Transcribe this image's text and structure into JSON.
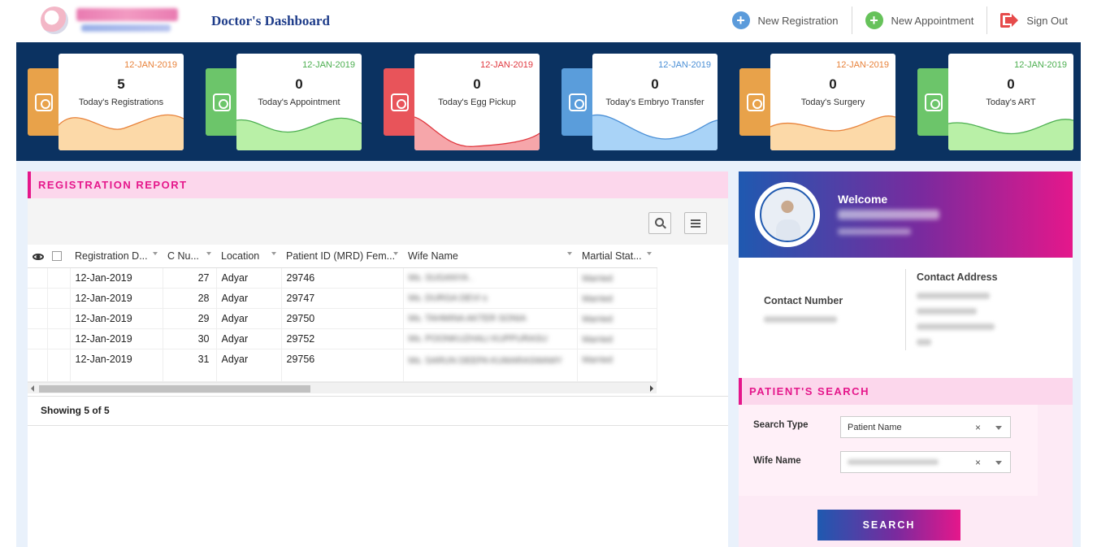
{
  "header": {
    "title": "Doctor's Dashboard",
    "nav": [
      {
        "label": "New Registration",
        "icon": "plus-circle-icon"
      },
      {
        "label": "New Appointment",
        "icon": "plus-circle-icon"
      },
      {
        "label": "Sign Out",
        "icon": "sign-out-icon"
      }
    ]
  },
  "stats": [
    {
      "date": "12-JAN-2019",
      "value": "5",
      "label": "Today's Registrations",
      "color": "#e8a24a",
      "date_color": "#e8823a",
      "wave": "#fcd9a8",
      "icon": "doctor-icon"
    },
    {
      "date": "12-JAN-2019",
      "value": "0",
      "label": "Today's Appointment",
      "color": "#6cc56a",
      "date_color": "#4caf50",
      "wave": "#b9f0a7",
      "icon": "appointment-icon"
    },
    {
      "date": "12-JAN-2019",
      "value": "0",
      "label": "Today's Egg Pickup",
      "color": "#e8545a",
      "date_color": "#e0383f",
      "wave": "#f6a6aa",
      "icon": "egg-pickup-icon"
    },
    {
      "date": "12-JAN-2019",
      "value": "0",
      "label": "Today's Embryo Transfer",
      "color": "#5a9ddb",
      "date_color": "#4a8fd6",
      "wave": "#a9d3f7",
      "icon": "embryo-transfer-icon"
    },
    {
      "date": "12-JAN-2019",
      "value": "0",
      "label": "Today's Surgery",
      "color": "#e8a24a",
      "date_color": "#e8823a",
      "wave": "#fcd9a8",
      "icon": "surgery-icon"
    },
    {
      "date": "12-JAN-2019",
      "value": "0",
      "label": "Today's ART",
      "color": "#6cc56a",
      "date_color": "#4caf50",
      "wave": "#b9f0a7",
      "icon": "art-icon"
    }
  ],
  "registration_report": {
    "title": "REGISTRATION REPORT",
    "columns": [
      "Registration D...",
      "C Nu...",
      "Location",
      "Patient ID (MRD) Fem...",
      "Wife Name",
      "Martial Stat..."
    ],
    "rows": [
      {
        "date": "12-Jan-2019",
        "cnum": "27",
        "location": "Adyar",
        "pid": "29746",
        "wife": "Ms. SUGANYA .",
        "marital": "Married"
      },
      {
        "date": "12-Jan-2019",
        "cnum": "28",
        "location": "Adyar",
        "pid": "29747",
        "wife": "Ms. DURGA DEVI s",
        "marital": "Married"
      },
      {
        "date": "12-Jan-2019",
        "cnum": "29",
        "location": "Adyar",
        "pid": "29750",
        "wife": "Ms. TAHMINA AKTER SONIA",
        "marital": "Married"
      },
      {
        "date": "12-Jan-2019",
        "cnum": "30",
        "location": "Adyar",
        "pid": "29752",
        "wife": "Ms. POONKUZHALI KUPPURASU",
        "marital": "Married"
      },
      {
        "date": "12-Jan-2019",
        "cnum": "31",
        "location": "Adyar",
        "pid": "29756",
        "wife": "Ms. SARUN DEEPA KUMARASWAMY",
        "marital": "Married"
      }
    ],
    "footer": "Showing 5 of 5"
  },
  "profile": {
    "welcome": "Welcome",
    "contact_number_label": "Contact Number",
    "contact_address_label": "Contact Address"
  },
  "patient_search": {
    "title": "PATIENT'S SEARCH",
    "search_type_label": "Search Type",
    "search_type_value": "Patient Name",
    "wife_name_label": "Wife Name",
    "clear_symbol": "×",
    "button": "SEARCH"
  }
}
